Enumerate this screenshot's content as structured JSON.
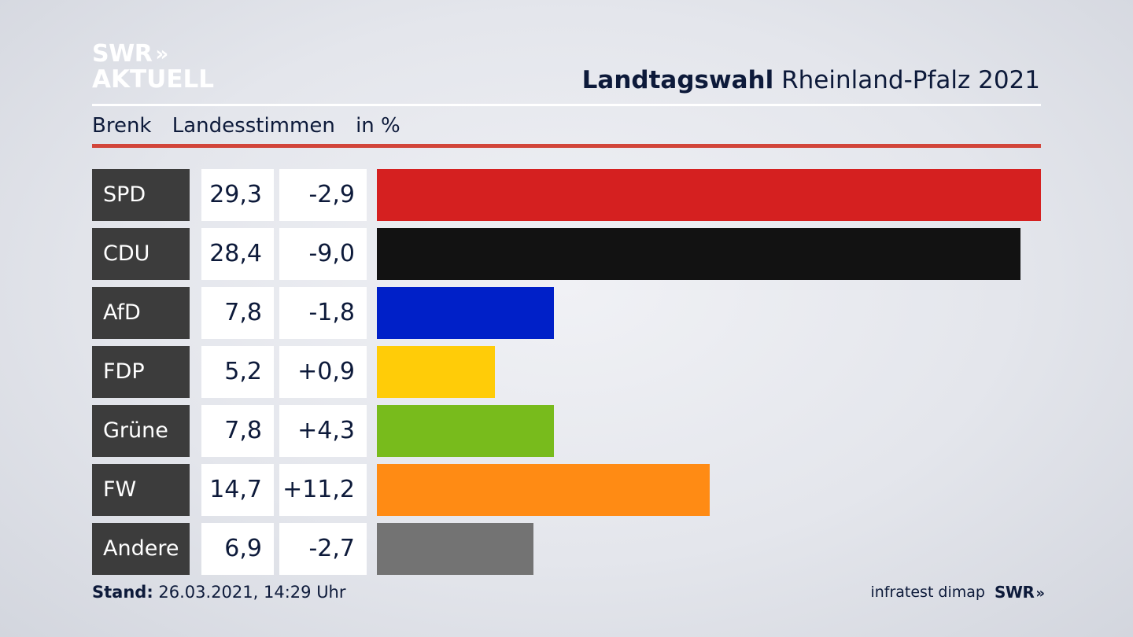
{
  "branding": {
    "logo_line1": "SWR",
    "logo_line2": "AKTUELL",
    "logo_arrows": "»",
    "footer_source": "infratest dimap",
    "footer_logo": "SWR",
    "footer_logo_arrows": "»"
  },
  "header": {
    "title_bold": "Landtagswahl",
    "title_rest": "Rheinland-Pfalz 2021"
  },
  "subheader": {
    "location": "Brenk",
    "type": "Landesstimmen",
    "unit": "in %"
  },
  "footer": {
    "stand_label": "Stand:",
    "stand_value": "26.03.2021, 14:29 Uhr"
  },
  "colors": {
    "SPD": "#d52020",
    "CDU": "#121212",
    "AfD": "#0020c8",
    "FDP": "#ffcc08",
    "Grüne": "#78bb1c",
    "FW": "#ff8b14",
    "Andere": "#737373",
    "accent_rule": "#d2453a"
  },
  "chart_data": {
    "type": "bar",
    "orientation": "horizontal",
    "categories": [
      "SPD",
      "CDU",
      "AfD",
      "FDP",
      "Grüne",
      "FW",
      "Andere"
    ],
    "values": [
      29.3,
      28.4,
      7.8,
      5.2,
      7.8,
      14.7,
      6.9
    ],
    "value_labels": [
      "29,3",
      "28,4",
      "7,8",
      "5,2",
      "7,8",
      "14,7",
      "6,9"
    ],
    "diffs": [
      -2.9,
      -9.0,
      -1.8,
      0.9,
      4.3,
      11.2,
      -2.7
    ],
    "diff_labels": [
      "-2,9",
      "-9,0",
      "-1,8",
      "+0,9",
      "+4,3",
      "+11,2",
      "-2,7"
    ],
    "xlim": [
      0,
      29.3
    ],
    "grid": false
  }
}
